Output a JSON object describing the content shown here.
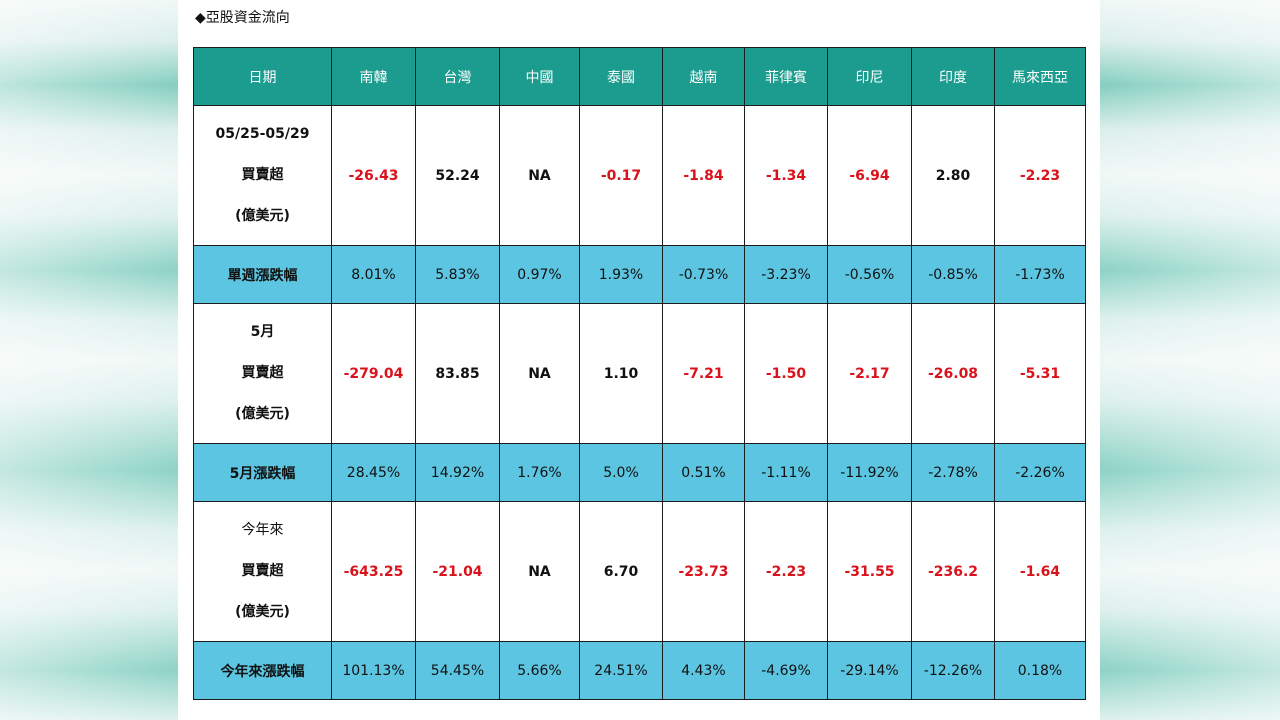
{
  "caption": "◆亞股資金流向",
  "headers": [
    "日期",
    "南韓",
    "台灣",
    "中國",
    "泰國",
    "越南",
    "菲律賓",
    "印尼",
    "印度",
    "馬來西亞"
  ],
  "rows": [
    {
      "label": [
        "05/25-05/29",
        "買賣超",
        "(億美元)"
      ],
      "cells": [
        {
          "v": "-26.43",
          "neg": true
        },
        {
          "v": "52.24",
          "neg": false
        },
        {
          "v": "NA",
          "neg": false
        },
        {
          "v": "-0.17",
          "neg": true
        },
        {
          "v": "-1.84",
          "neg": true
        },
        {
          "v": "-1.34",
          "neg": true
        },
        {
          "v": "-6.94",
          "neg": true
        },
        {
          "v": "2.80",
          "neg": false
        },
        {
          "v": "-2.23",
          "neg": true
        }
      ]
    },
    {
      "label": "單週漲跌幅",
      "cells": [
        "8.01%",
        "5.83%",
        "0.97%",
        "1.93%",
        "-0.73%",
        "-3.23%",
        "-0.56%",
        "-0.85%",
        "-1.73%"
      ]
    },
    {
      "label": [
        "5月",
        "買賣超",
        "(億美元)"
      ],
      "cells": [
        {
          "v": "-279.04",
          "neg": true
        },
        {
          "v": "83.85",
          "neg": false
        },
        {
          "v": "NA",
          "neg": false
        },
        {
          "v": "1.10",
          "neg": false
        },
        {
          "v": "-7.21",
          "neg": true
        },
        {
          "v": "-1.50",
          "neg": true
        },
        {
          "v": "-2.17",
          "neg": true
        },
        {
          "v": "-26.08",
          "neg": true
        },
        {
          "v": "-5.31",
          "neg": true
        }
      ]
    },
    {
      "label": "5月漲跌幅",
      "cells": [
        "28.45%",
        "14.92%",
        "1.76%",
        "5.0%",
        "0.51%",
        "-1.11%",
        "-11.92%",
        "-2.78%",
        "-2.26%"
      ]
    },
    {
      "label": [
        "今年來",
        "買賣超",
        "(億美元)"
      ],
      "cells": [
        {
          "v": "-643.25",
          "neg": true
        },
        {
          "v": "-21.04",
          "neg": true
        },
        {
          "v": "NA",
          "neg": false
        },
        {
          "v": "6.70",
          "neg": false
        },
        {
          "v": "-23.73",
          "neg": true
        },
        {
          "v": "-2.23",
          "neg": true
        },
        {
          "v": "-31.55",
          "neg": true
        },
        {
          "v": "-236.2",
          "neg": true
        },
        {
          "v": "-1.64",
          "neg": true
        }
      ]
    },
    {
      "label": "今年來漲跌幅",
      "cells": [
        "101.13%",
        "54.45%",
        "5.66%",
        "24.51%",
        "4.43%",
        "-4.69%",
        "-29.14%",
        "-12.26%",
        "0.18%"
      ]
    }
  ],
  "colors": {
    "header_bg": "#1b9c8f",
    "band_bg": "#5cc6e2",
    "negative": "#d9121b"
  }
}
